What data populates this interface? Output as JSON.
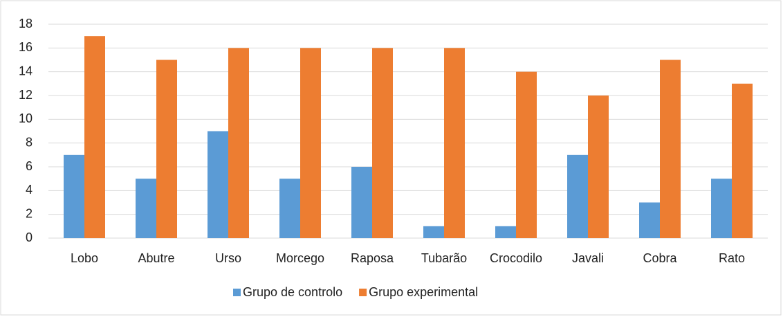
{
  "chart_data": {
    "type": "bar",
    "categories": [
      "Lobo",
      "Abutre",
      "Urso",
      "Morcego",
      "Raposa",
      "Tubarão",
      "Crocodilo",
      "Javali",
      "Cobra",
      "Rato"
    ],
    "series": [
      {
        "name": "Grupo de controlo",
        "color": "#5b9bd5",
        "values": [
          7,
          5,
          9,
          5,
          6,
          1,
          1,
          7,
          3,
          5
        ]
      },
      {
        "name": "Grupo experimental",
        "color": "#ed7d31",
        "values": [
          17,
          15,
          16,
          16,
          16,
          16,
          14,
          12,
          15,
          13
        ]
      }
    ],
    "ylim": [
      0,
      18
    ],
    "yticks": [
      0,
      2,
      4,
      6,
      8,
      10,
      12,
      14,
      16,
      18
    ],
    "grid": true,
    "legend": "bottom"
  }
}
